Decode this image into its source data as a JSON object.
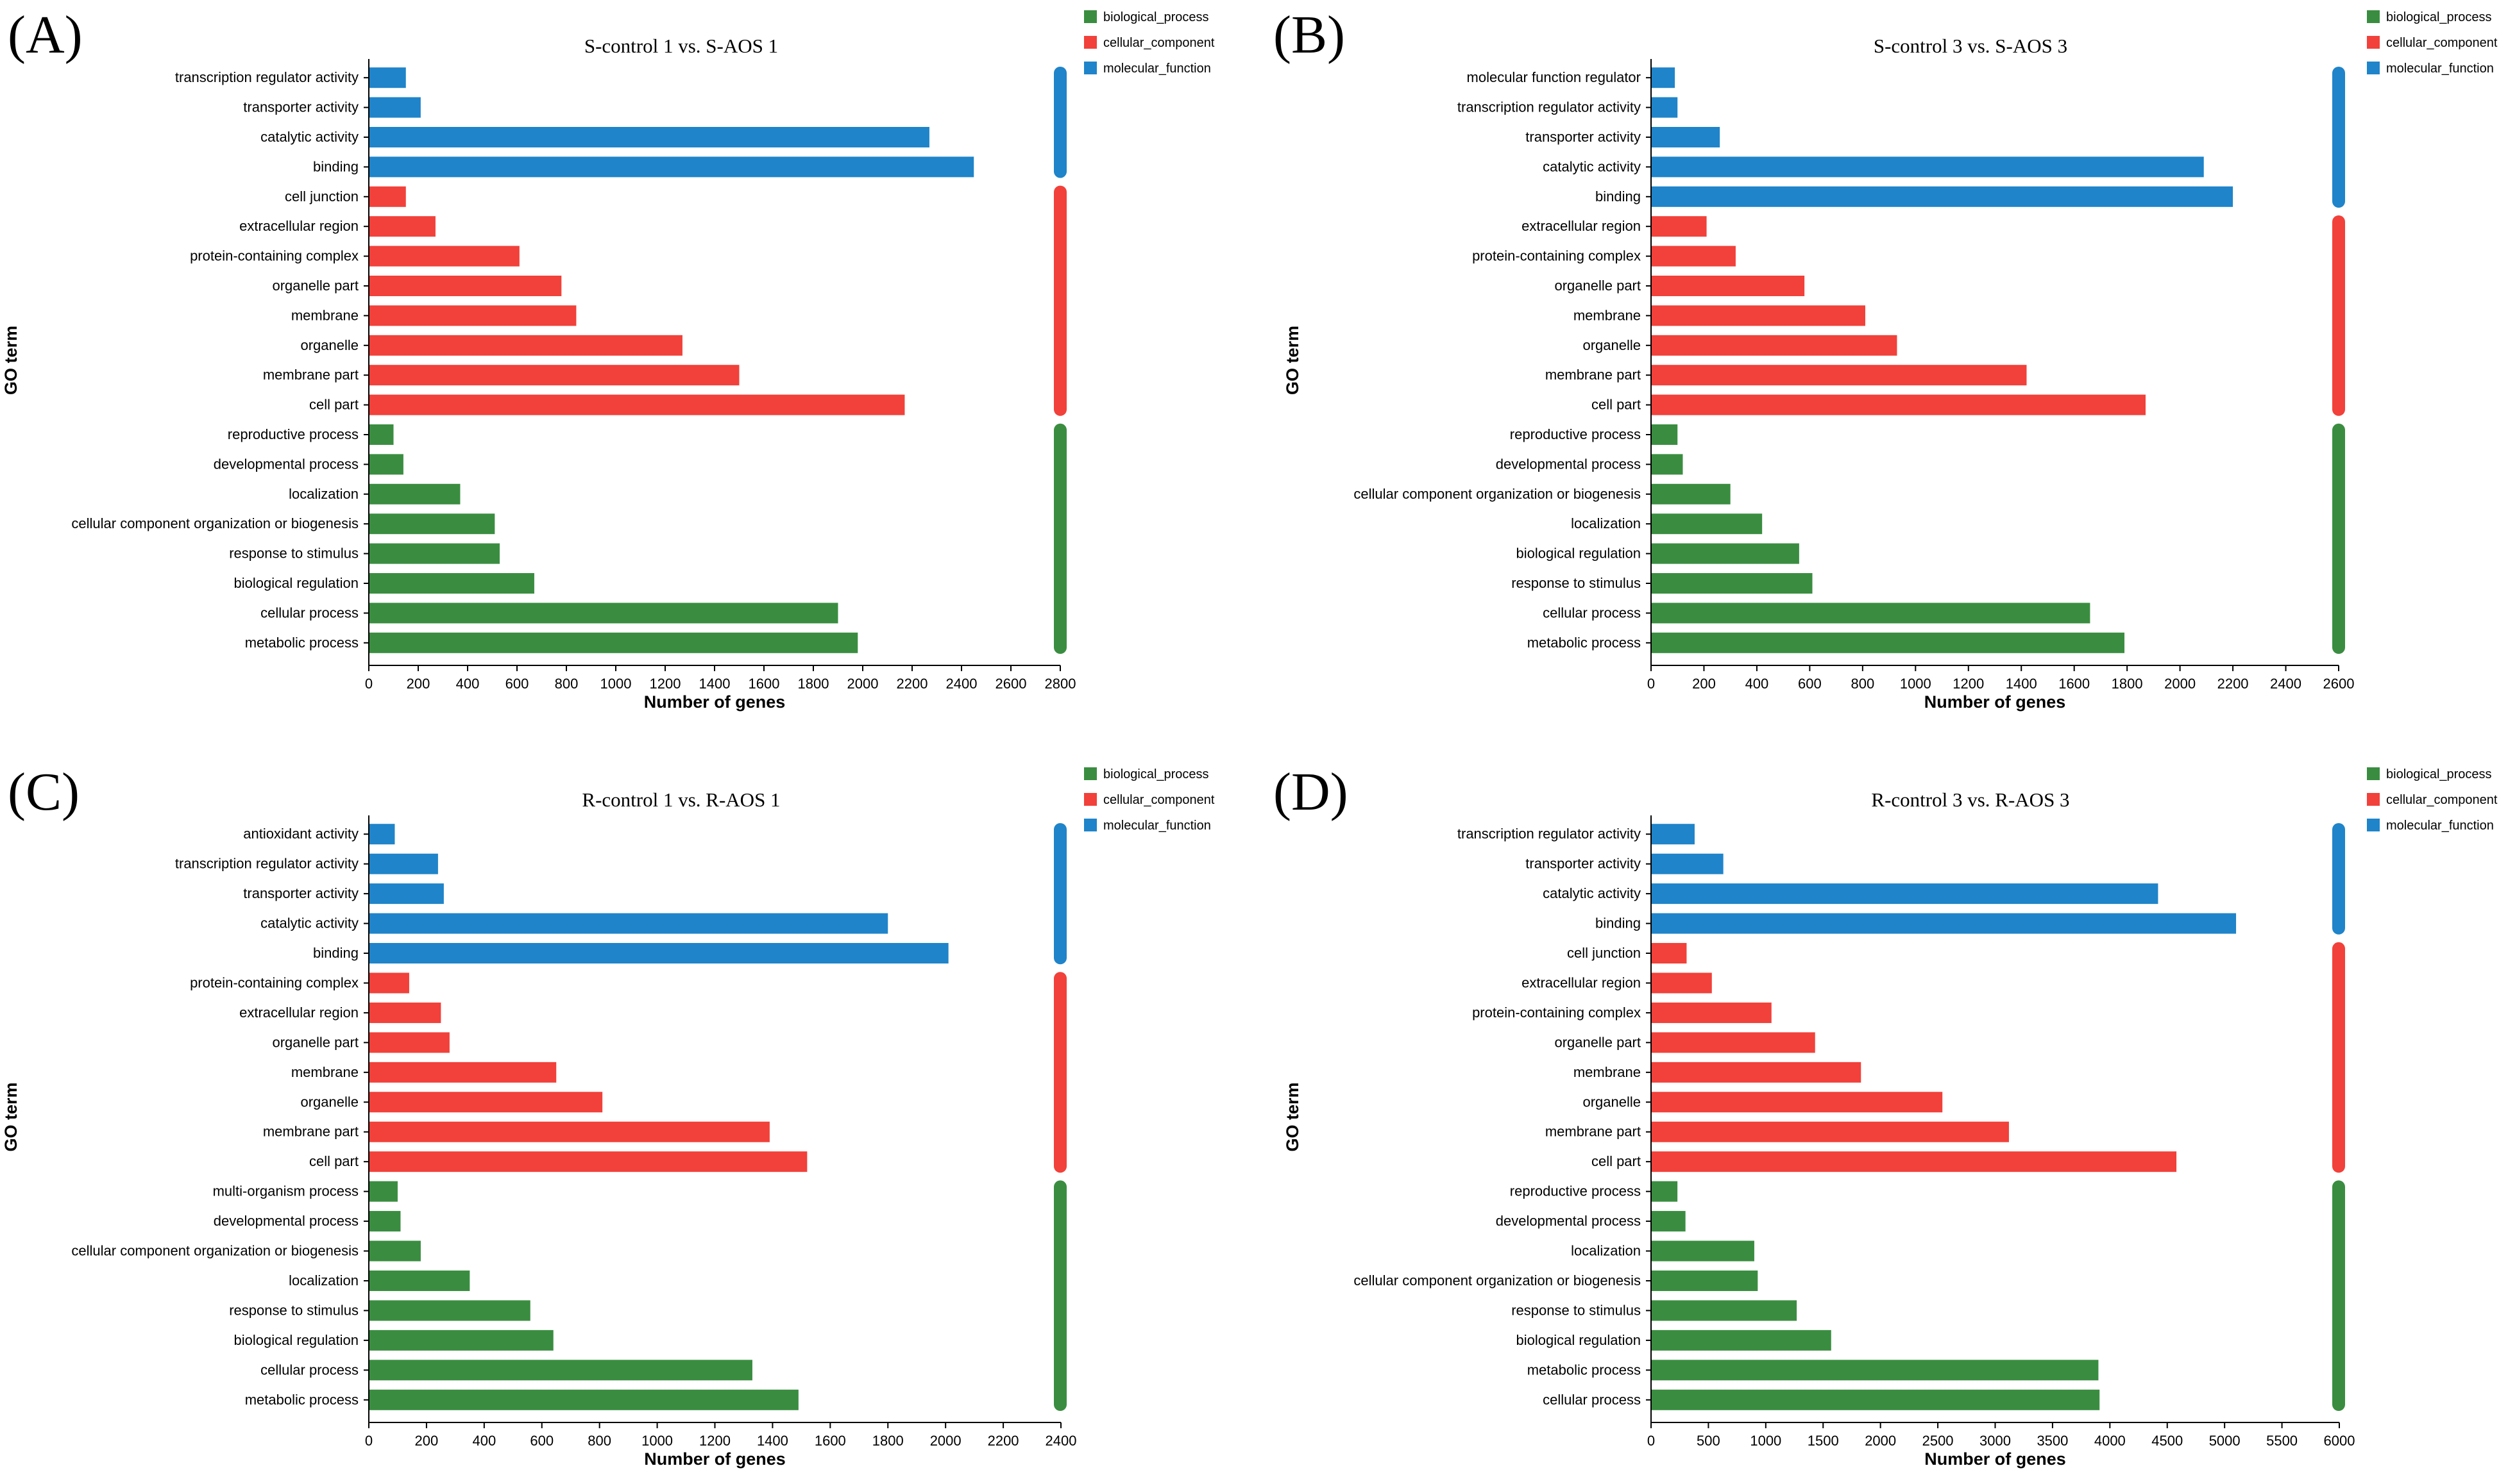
{
  "colors": {
    "biological_process": "#3a8d40",
    "cellular_component": "#f1413a",
    "molecular_function": "#1f84c9"
  },
  "legend": [
    "biological_process",
    "cellular_component",
    "molecular_function"
  ],
  "chart_data": [
    {
      "type": "bar",
      "orientation": "horizontal",
      "panel": "(A)",
      "title": "S-control 1 vs. S-AOS 1",
      "xlabel": "Number of genes",
      "ylabel": "GO term",
      "xlim": [
        0,
        2800
      ],
      "xticks": [
        0,
        200,
        400,
        600,
        800,
        1000,
        1200,
        1400,
        1600,
        1800,
        2000,
        2200,
        2400,
        2600,
        2800
      ],
      "categories": [
        "transcription regulator activity",
        "transporter activity",
        "catalytic activity",
        "binding",
        "cell junction",
        "extracellular region",
        "protein-containing complex",
        "organelle part",
        "membrane",
        "organelle",
        "membrane part",
        "cell part",
        "reproductive process",
        "developmental process",
        "localization",
        "cellular component organization or biogenesis",
        "response to stimulus",
        "biological regulation",
        "cellular process",
        "metabolic process"
      ],
      "values": [
        150,
        210,
        2270,
        2450,
        150,
        270,
        610,
        780,
        840,
        1270,
        1500,
        2170,
        100,
        140,
        370,
        510,
        530,
        670,
        1900,
        1980
      ],
      "groups": [
        "molecular_function",
        "molecular_function",
        "molecular_function",
        "molecular_function",
        "cellular_component",
        "cellular_component",
        "cellular_component",
        "cellular_component",
        "cellular_component",
        "cellular_component",
        "cellular_component",
        "cellular_component",
        "biological_process",
        "biological_process",
        "biological_process",
        "biological_process",
        "biological_process",
        "biological_process",
        "biological_process",
        "biological_process"
      ]
    },
    {
      "type": "bar",
      "orientation": "horizontal",
      "panel": "(B)",
      "title": "S-control 3 vs. S-AOS 3",
      "xlabel": "Number of genes",
      "ylabel": "GO term",
      "xlim": [
        0,
        2600
      ],
      "xticks": [
        0,
        200,
        400,
        600,
        800,
        1000,
        1200,
        1400,
        1600,
        1800,
        2000,
        2200,
        2400,
        2600
      ],
      "categories": [
        "molecular function regulator",
        "transcription regulator activity",
        "transporter activity",
        "catalytic activity",
        "binding",
        "extracellular region",
        "protein-containing complex",
        "organelle part",
        "membrane",
        "organelle",
        "membrane part",
        "cell part",
        "reproductive process",
        "developmental process",
        "cellular component organization or biogenesis",
        "localization",
        "biological regulation",
        "response to stimulus",
        "cellular process",
        "metabolic process"
      ],
      "values": [
        90,
        100,
        260,
        2090,
        2200,
        210,
        320,
        580,
        810,
        930,
        1420,
        1870,
        100,
        120,
        300,
        420,
        560,
        610,
        1660,
        1790
      ],
      "groups": [
        "molecular_function",
        "molecular_function",
        "molecular_function",
        "molecular_function",
        "molecular_function",
        "cellular_component",
        "cellular_component",
        "cellular_component",
        "cellular_component",
        "cellular_component",
        "cellular_component",
        "cellular_component",
        "biological_process",
        "biological_process",
        "biological_process",
        "biological_process",
        "biological_process",
        "biological_process",
        "biological_process",
        "biological_process"
      ]
    },
    {
      "type": "bar",
      "orientation": "horizontal",
      "panel": "(C)",
      "title": "R-control 1 vs. R-AOS 1",
      "xlabel": "Number of genes",
      "ylabel": "GO term",
      "xlim": [
        0,
        2400
      ],
      "xticks": [
        0,
        200,
        400,
        600,
        800,
        1000,
        1200,
        1400,
        1600,
        1800,
        2000,
        2200,
        2400
      ],
      "categories": [
        "antioxidant activity",
        "transcription regulator activity",
        "transporter activity",
        "catalytic activity",
        "binding",
        "protein-containing complex",
        "extracellular region",
        "organelle part",
        "membrane",
        "organelle",
        "membrane part",
        "cell part",
        "multi-organism process",
        "developmental process",
        "cellular component organization or biogenesis",
        "localization",
        "response to stimulus",
        "biological regulation",
        "cellular process",
        "metabolic process"
      ],
      "values": [
        90,
        240,
        260,
        1800,
        2010,
        140,
        250,
        280,
        650,
        810,
        1390,
        1520,
        100,
        110,
        180,
        350,
        560,
        640,
        1330,
        1490
      ],
      "groups": [
        "molecular_function",
        "molecular_function",
        "molecular_function",
        "molecular_function",
        "molecular_function",
        "cellular_component",
        "cellular_component",
        "cellular_component",
        "cellular_component",
        "cellular_component",
        "cellular_component",
        "cellular_component",
        "biological_process",
        "biological_process",
        "biological_process",
        "biological_process",
        "biological_process",
        "biological_process",
        "biological_process",
        "biological_process"
      ]
    },
    {
      "type": "bar",
      "orientation": "horizontal",
      "panel": "(D)",
      "title": "R-control 3 vs. R-AOS 3",
      "xlabel": "Number of genes",
      "ylabel": "GO term",
      "xlim": [
        0,
        6000
      ],
      "xticks": [
        0,
        500,
        1000,
        1500,
        2000,
        2500,
        3000,
        3500,
        4000,
        4500,
        5000,
        5500,
        6000
      ],
      "categories": [
        "transcription regulator activity",
        "transporter activity",
        "catalytic activity",
        "binding",
        "cell junction",
        "extracellular region",
        "protein-containing complex",
        "organelle part",
        "membrane",
        "organelle",
        "membrane part",
        "cell part",
        "reproductive process",
        "developmental process",
        "localization",
        "cellular component organization or biogenesis",
        "response to stimulus",
        "biological regulation",
        "metabolic process",
        "cellular process"
      ],
      "values": [
        380,
        630,
        4420,
        5100,
        310,
        530,
        1050,
        1430,
        1830,
        2540,
        3120,
        4580,
        230,
        300,
        900,
        930,
        1270,
        1570,
        3900,
        3910
      ],
      "groups": [
        "molecular_function",
        "molecular_function",
        "molecular_function",
        "molecular_function",
        "cellular_component",
        "cellular_component",
        "cellular_component",
        "cellular_component",
        "cellular_component",
        "cellular_component",
        "cellular_component",
        "cellular_component",
        "biological_process",
        "biological_process",
        "biological_process",
        "biological_process",
        "biological_process",
        "biological_process",
        "biological_process",
        "biological_process"
      ]
    }
  ]
}
